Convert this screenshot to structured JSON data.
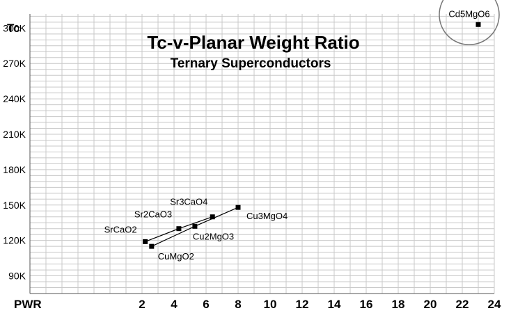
{
  "chart_data": {
    "type": "scatter",
    "title": "Tc-v-Planar Weight Ratio",
    "subtitle": "Ternary Superconductors",
    "xlabel": "PWR",
    "ylabel": "Tc",
    "xlim": [
      0,
      24
    ],
    "ylim": [
      75,
      312
    ],
    "x_ticks": [
      2,
      4,
      6,
      8,
      10,
      12,
      14,
      16,
      18,
      20,
      22,
      24
    ],
    "y_ticks": [
      {
        "value": 90,
        "label": "90K"
      },
      {
        "value": 120,
        "label": "120K"
      },
      {
        "value": 150,
        "label": "150K"
      },
      {
        "value": 180,
        "label": "180K"
      },
      {
        "value": 210,
        "label": "210K"
      },
      {
        "value": 240,
        "label": "240K"
      },
      {
        "value": 270,
        "label": "270K"
      },
      {
        "value": 300,
        "label": "300K"
      }
    ],
    "grid": true,
    "points": [
      {
        "label": "SrCaO2",
        "x": 2.2,
        "y": 119
      },
      {
        "label": "Sr2CaO3",
        "x": 4.3,
        "y": 130
      },
      {
        "label": "Sr3CaO4",
        "x": 6.4,
        "y": 140
      },
      {
        "label": "CuMgO2",
        "x": 2.6,
        "y": 115
      },
      {
        "label": "Cu2MgO3",
        "x": 5.3,
        "y": 132
      },
      {
        "label": "Cu3MgO4",
        "x": 8.0,
        "y": 148
      },
      {
        "label": "Cd5MgO6",
        "x": 23.0,
        "y": 303
      }
    ],
    "lines": [
      [
        "SrCaO2",
        "Sr2CaO3",
        "Sr3CaO4"
      ],
      [
        "CuMgO2",
        "Cu2MgO3",
        "Cu3MgO4"
      ]
    ],
    "highlight": "Cd5MgO6"
  }
}
